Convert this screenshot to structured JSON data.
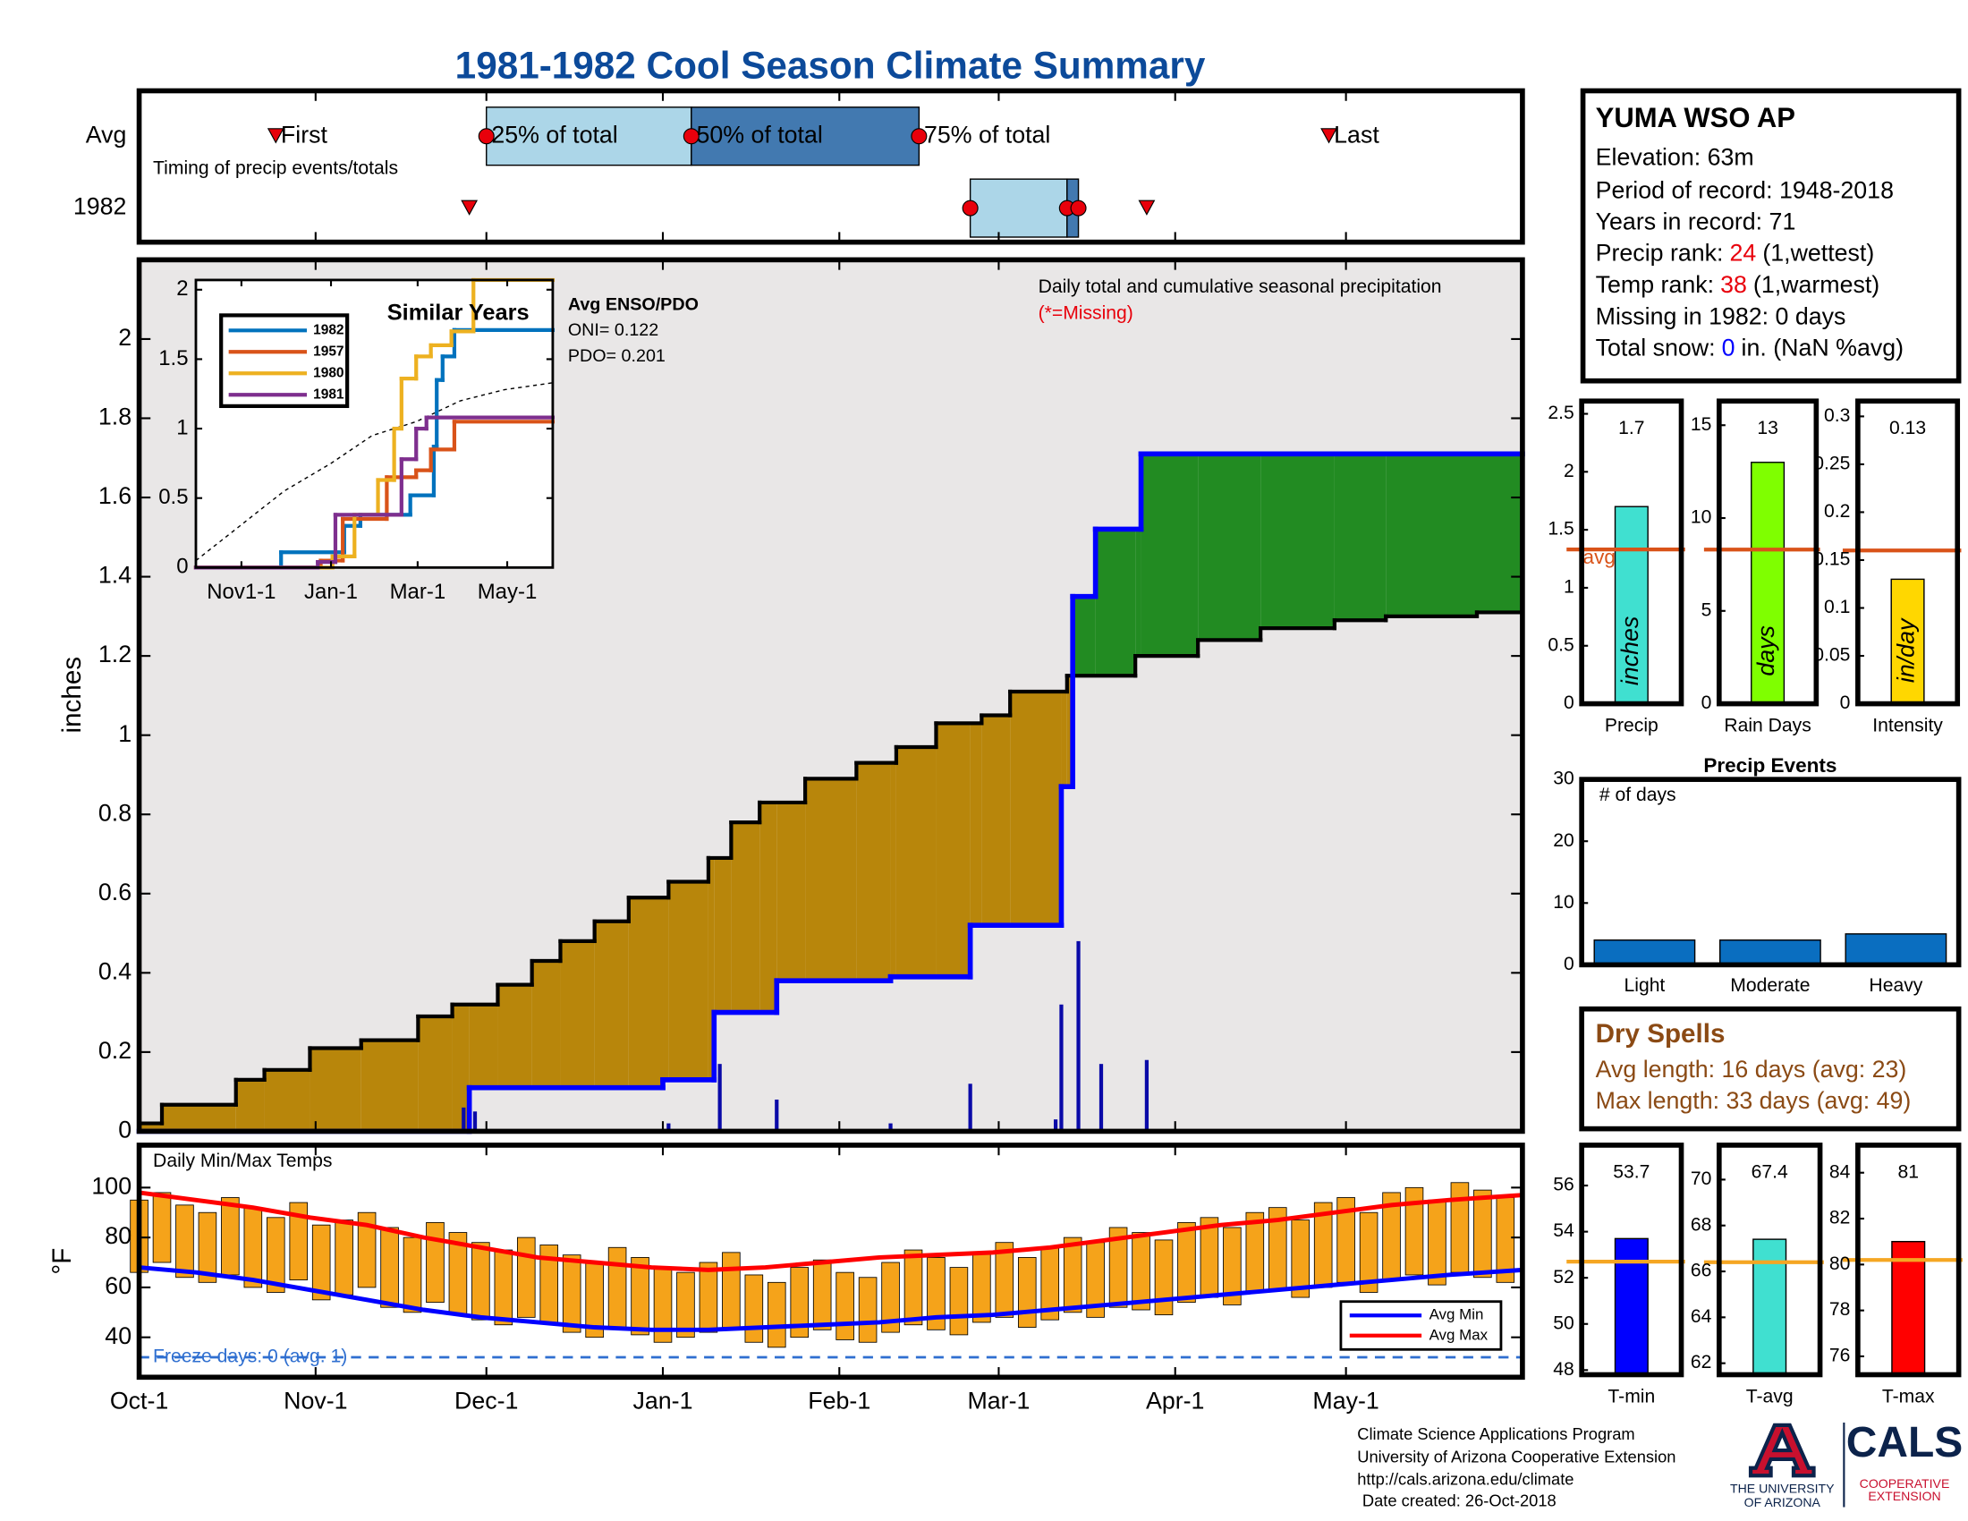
{
  "title": "1981-1982 Cool Season Climate Summary",
  "station": {
    "name": "YUMA WSO AP",
    "lines": [
      "Elevation: 63m",
      "Period of record: 1948-2018",
      "Years in record: 71"
    ],
    "precip_rank": [
      "Precip rank:",
      "24",
      "(1,wettest)"
    ],
    "temp_rank": [
      "Temp rank:",
      "38",
      "(1,warmest)"
    ],
    "missing": "Missing in 1982: 0 days",
    "snow": [
      "Total snow:",
      "0",
      "in. (NaN %avg)"
    ]
  },
  "dry_spells": {
    "title": "Dry Spells",
    "lines": [
      "Avg length: 16 days (avg: 23)",
      "Max length: 33 days (avg: 49)"
    ]
  },
  "footer": {
    "lines": [
      "Climate Science Applications Program",
      "University of Arizona Cooperative Extension",
      "http://cals.arizona.edu/climate",
      "Date created: 26-Oct-2018"
    ],
    "logo_left": [
      "THE UNIVERSITY",
      "OF ARIZONA"
    ],
    "logo_right": "CALS",
    "logo_right_sub": [
      "COOPERATIVE",
      "EXTENSION"
    ]
  },
  "chart_data": [
    {
      "type": "timing",
      "categories": [
        "Avg",
        "1982"
      ],
      "events": [
        "First",
        "25% of total",
        "50% of total",
        "75% of total",
        "Last"
      ],
      "values": [
        [
          24,
          61,
          97,
          137,
          209
        ],
        [
          58,
          146,
          163,
          165,
          177
        ]
      ],
      "annotation": "Timing of precip events/totals",
      "colors": [
        "#acd6e8",
        "#4279b0"
      ],
      "marker_color": "#e8000b"
    },
    {
      "type": "area",
      "title": "Daily total and cumulative seasonal precipitation",
      "subtitle": "(*=Missing)",
      "ylabel": "inches",
      "xlim": [
        0,
        243
      ],
      "xticks": [
        {
          "value": 0,
          "label": "Oct-1"
        },
        {
          "value": 31,
          "label": "Nov-1"
        },
        {
          "value": 61,
          "label": "Dec-1"
        },
        {
          "value": 92,
          "label": "Jan-1"
        },
        {
          "value": 123,
          "label": "Feb-1"
        },
        {
          "value": 151,
          "label": "Mar-1"
        },
        {
          "value": 182,
          "label": "Apr-1"
        },
        {
          "value": 212,
          "label": "May-1"
        }
      ],
      "ylim": [
        0,
        2.2
      ],
      "yticks": [
        0,
        0.2,
        0.4,
        0.6,
        0.8,
        1,
        1.2,
        1.4,
        1.6,
        1.8,
        2
      ],
      "background": "#e9e7e7",
      "deficit_color": "#b8860b",
      "surplus_color": "#228b22",
      "series": [
        {
          "color": "#000000",
          "x": [
            0,
            4,
            17,
            22,
            30,
            39,
            49,
            55,
            63,
            69,
            74,
            80,
            86,
            93,
            100,
            104,
            109,
            117,
            126,
            133,
            140,
            148,
            153,
            163,
            175,
            186,
            197,
            210,
            219,
            235
          ],
          "values": [
            0.02,
            0.067,
            0.13,
            0.155,
            0.21,
            0.23,
            0.29,
            0.32,
            0.37,
            0.43,
            0.48,
            0.53,
            0.59,
            0.63,
            0.69,
            0.78,
            0.83,
            0.89,
            0.93,
            0.97,
            1.03,
            1.05,
            1.11,
            1.15,
            1.2,
            1.24,
            1.27,
            1.29,
            1.3,
            1.31
          ]
        },
        {
          "color": "#0000ff",
          "x": [
            0,
            58,
            92,
            101,
            112,
            132,
            146,
            162,
            164,
            168,
            176
          ],
          "values": [
            0,
            0.11,
            0.13,
            0.3,
            0.38,
            0.39,
            0.52,
            0.87,
            1.35,
            1.52,
            1.71
          ]
        },
        {
          "color": "#0a0aa8",
          "x": [
            57,
            59,
            93,
            102,
            112,
            132,
            146,
            161,
            162,
            165,
            169,
            177
          ],
          "values": [
            0.06,
            0.05,
            0.02,
            0.17,
            0.08,
            0.02,
            0.12,
            0.03,
            0.32,
            0.48,
            0.17,
            0.18
          ]
        }
      ]
    },
    {
      "type": "line",
      "title": "Similar Years",
      "xlim": [
        0,
        243
      ],
      "xticks": [
        {
          "value": 31,
          "label": "Nov1-1"
        },
        {
          "value": 92,
          "label": "Jan-1"
        },
        {
          "value": 151,
          "label": "Mar-1"
        },
        {
          "value": 212,
          "label": "May-1"
        }
      ],
      "ylim": [
        0,
        2.07
      ],
      "yticks": [
        0,
        0.5,
        1,
        1.5,
        2
      ],
      "avg": {
        "color": "#000000",
        "x": [
          0,
          30,
          60,
          92,
          120,
          150,
          180,
          210,
          243
        ],
        "values": [
          0.05,
          0.3,
          0.55,
          0.75,
          0.95,
          1.05,
          1.2,
          1.28,
          1.33
        ]
      },
      "series": [
        {
          "name": "1982",
          "color": "#0072bd",
          "x": [
            0,
            58,
            101,
            112,
            146,
            162,
            164,
            168,
            176
          ],
          "values": [
            0,
            0.11,
            0.3,
            0.38,
            0.52,
            0.87,
            1.35,
            1.52,
            1.71
          ]
        },
        {
          "name": "1957",
          "color": "#d95319",
          "x": [
            0,
            85,
            100,
            130,
            150,
            160,
            176
          ],
          "values": [
            0,
            0.05,
            0.35,
            0.65,
            0.7,
            0.85,
            1.05
          ]
        },
        {
          "name": "1980",
          "color": "#edb120",
          "x": [
            0,
            93,
            108,
            124,
            135,
            140,
            150,
            160,
            174,
            189
          ],
          "values": [
            0,
            0.08,
            0.38,
            0.63,
            1.0,
            1.36,
            1.52,
            1.6,
            1.7,
            2.07
          ]
        },
        {
          "name": "1981",
          "color": "#7e2f8e",
          "x": [
            0,
            83,
            95,
            140,
            150,
            157
          ],
          "values": [
            0,
            0.04,
            0.38,
            0.78,
            1.0,
            1.08
          ]
        }
      ],
      "notes": [
        "Avg ENSO/PDO",
        "ONI= 0.122",
        "PDO= 0.201"
      ]
    },
    {
      "type": "range",
      "title": "Daily Min/Max Temps",
      "ylabel": "°F",
      "ylim": [
        24,
        117
      ],
      "yticks": [
        40,
        60,
        80,
        100
      ],
      "color": "#f5a31a",
      "x": [
        0,
        4,
        8,
        12,
        16,
        20,
        24,
        28,
        32,
        36,
        40,
        44,
        48,
        52,
        56,
        60,
        64,
        68,
        72,
        76,
        80,
        84,
        88,
        92,
        96,
        100,
        104,
        108,
        112,
        116,
        120,
        124,
        128,
        132,
        136,
        140,
        144,
        148,
        152,
        156,
        160,
        164,
        168,
        172,
        176,
        180,
        184,
        188,
        192,
        196,
        200,
        204,
        208,
        212,
        216,
        220,
        224,
        228,
        232,
        236,
        240
      ],
      "min": [
        66,
        70,
        64,
        62,
        65,
        60,
        58,
        63,
        55,
        57,
        60,
        52,
        50,
        54,
        49,
        47,
        45,
        48,
        46,
        42,
        40,
        44,
        41,
        38,
        40,
        42,
        44,
        38,
        36,
        40,
        43,
        39,
        38,
        42,
        45,
        43,
        41,
        46,
        48,
        44,
        47,
        50,
        48,
        52,
        51,
        49,
        54,
        56,
        53,
        58,
        59,
        56,
        60,
        62,
        58,
        63,
        65,
        61,
        66,
        64,
        62
      ],
      "max": [
        95,
        98,
        93,
        90,
        96,
        92,
        88,
        94,
        85,
        87,
        90,
        84,
        80,
        86,
        82,
        78,
        75,
        80,
        77,
        73,
        70,
        76,
        72,
        68,
        66,
        70,
        74,
        65,
        62,
        68,
        71,
        66,
        64,
        70,
        75,
        72,
        68,
        74,
        78,
        72,
        76,
        80,
        78,
        84,
        82,
        79,
        86,
        88,
        84,
        90,
        92,
        87,
        94,
        96,
        90,
        98,
        100,
        95,
        102,
        99,
        96
      ],
      "series": [
        {
          "name": "Avg Min",
          "color": "#0000ff",
          "x": [
            0,
            10,
            20,
            30,
            40,
            50,
            60,
            70,
            80,
            90,
            100,
            110,
            120,
            130,
            140,
            150,
            160,
            170,
            180,
            190,
            200,
            210,
            220,
            230,
            243
          ],
          "values": [
            68,
            66,
            63,
            59,
            55,
            51,
            48,
            46,
            44,
            43,
            43,
            44,
            45,
            46,
            48,
            49,
            51,
            53,
            55,
            57,
            59,
            61,
            63,
            65,
            67
          ]
        },
        {
          "name": "Avg Max",
          "color": "#ff0000",
          "x": [
            0,
            10,
            20,
            30,
            40,
            50,
            60,
            70,
            80,
            90,
            100,
            110,
            120,
            130,
            140,
            150,
            160,
            170,
            180,
            190,
            200,
            210,
            220,
            230,
            243
          ],
          "values": [
            98,
            95,
            92,
            88,
            85,
            80,
            76,
            72,
            70,
            68,
            67,
            68,
            70,
            72,
            73,
            74,
            76,
            79,
            82,
            85,
            87,
            90,
            93,
            95,
            97
          ]
        }
      ],
      "freeze": 32,
      "freeze_label": "Freeze days: 0 (avg. 1)",
      "freeze_color": "#2f6fd0"
    },
    {
      "type": "bar",
      "label": "Precip",
      "unit": "inches",
      "values": [
        1.7
      ],
      "color": "#40e0d0",
      "avg": 1.33,
      "avg_label": "avg",
      "avg_color": "#d95319",
      "ylim": [
        0,
        2.61
      ],
      "yticks": [
        0,
        0.5,
        1,
        1.5,
        2,
        2.5
      ]
    },
    {
      "type": "bar",
      "label": "Rain Days",
      "unit": "days",
      "values": [
        13
      ],
      "color": "#7fff00",
      "avg": 8.3,
      "avg_color": "#d95319",
      "ylim": [
        0,
        16.3
      ],
      "yticks": [
        0,
        5,
        10,
        15
      ]
    },
    {
      "type": "bar",
      "label": "Intensity",
      "unit": "in/day",
      "values": [
        0.13
      ],
      "color": "#ffd700",
      "avg": 0.16,
      "avg_color": "#d95319",
      "ylim": [
        0,
        0.316
      ],
      "yticks": [
        0,
        0.05,
        0.1,
        0.15,
        0.2,
        0.25,
        0.3
      ]
    },
    {
      "type": "bar",
      "title": "Precip Events",
      "note": "# of days",
      "categories": [
        "Light",
        "Moderate",
        "Heavy"
      ],
      "values": [
        4,
        4,
        5
      ],
      "color": "#0a6ec0",
      "ylim": [
        0,
        30
      ],
      "yticks": [
        0,
        10,
        20,
        30
      ]
    },
    {
      "type": "bar",
      "label": "T-min",
      "values": [
        53.7
      ],
      "color": "#0000ff",
      "avg": 52.7,
      "avg_color": "#f5a623",
      "ylim": [
        47.8,
        57.75
      ],
      "yticks": [
        48,
        50,
        52,
        54,
        56
      ]
    },
    {
      "type": "bar",
      "label": "T-avg",
      "values": [
        67.4
      ],
      "color": "#40e0d0",
      "avg": 66.4,
      "avg_color": "#f5a623",
      "ylim": [
        61.5,
        71.5
      ],
      "yticks": [
        62,
        64,
        66,
        68,
        70
      ]
    },
    {
      "type": "bar",
      "label": "T-max",
      "values": [
        81
      ],
      "color": "#ff0000",
      "avg": 80.2,
      "avg_color": "#f5a623",
      "ylim": [
        75.2,
        85.2
      ],
      "yticks": [
        76,
        78,
        80,
        82,
        84
      ]
    }
  ]
}
